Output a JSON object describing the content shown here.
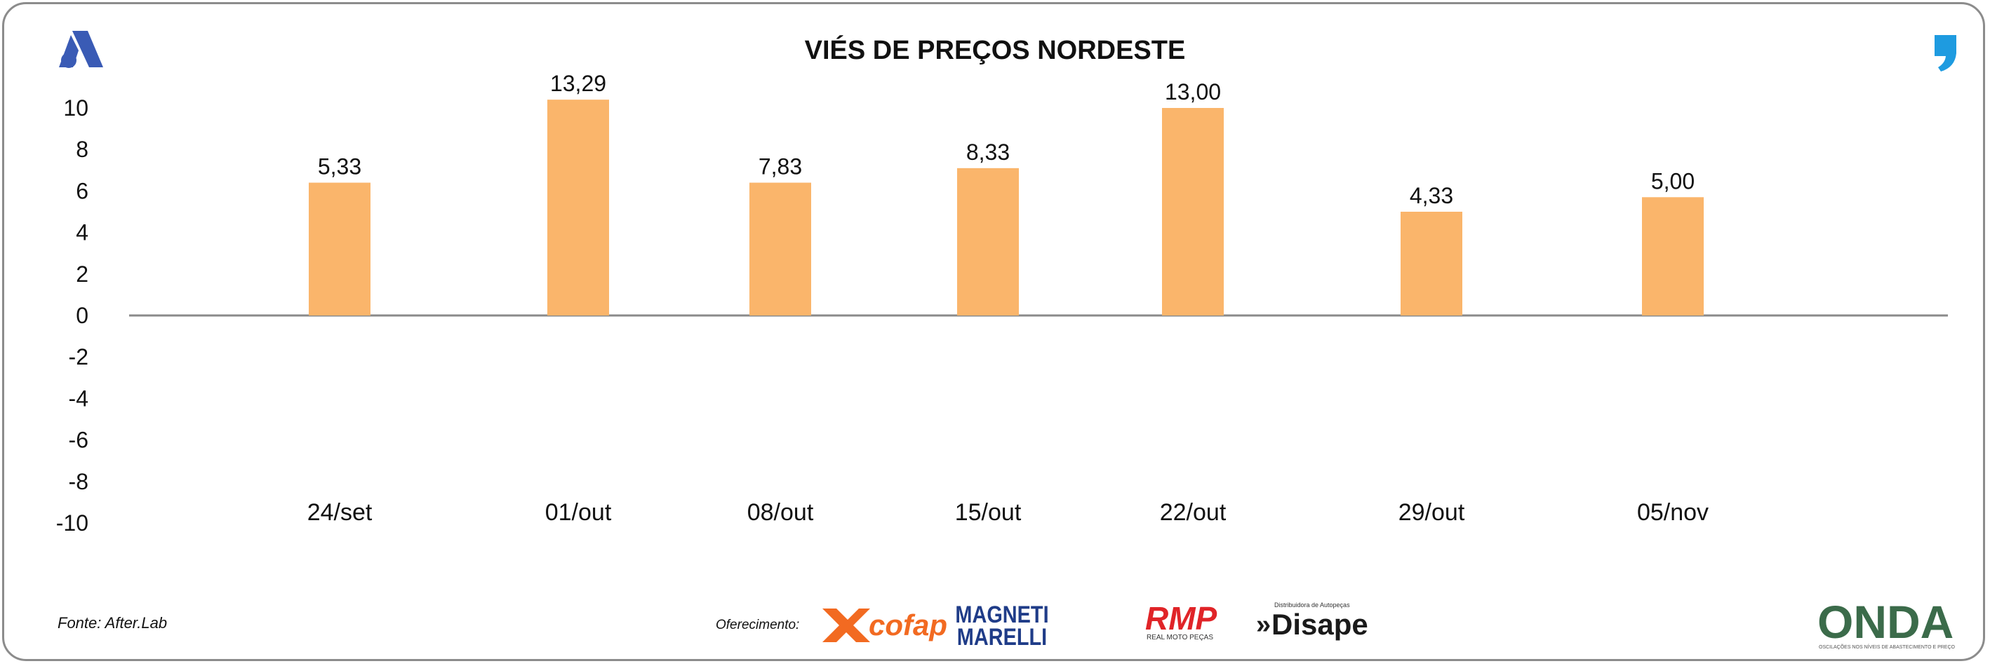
{
  "chart_data": {
    "type": "bar",
    "title": "VIÉS DE PREÇOS NORDESTE",
    "categories": [
      "24/set",
      "01/out",
      "08/out",
      "15/out",
      "22/out",
      "29/out",
      "05/nov"
    ],
    "values": [
      5.33,
      13.29,
      7.83,
      8.33,
      13.0,
      4.33,
      5.0
    ],
    "data_labels": [
      "5,33",
      "13,29",
      "7,83",
      "8,33",
      "13,00",
      "4,33",
      "5,00"
    ],
    "yticks": [
      "10",
      "8",
      "6",
      "4",
      "2",
      "0",
      "-2",
      "-4",
      "-6",
      "-8",
      "-10"
    ],
    "ylim": [
      -10,
      10
    ],
    "bar_color": "#FAB56B",
    "grid": false,
    "legend": "none"
  },
  "footer": {
    "source": "Fonte: After.Lab",
    "sponsor_label": "Oferecimento:",
    "sponsors": [
      "cofap",
      "MAGNETI MARELLI",
      "RMP",
      "Disape"
    ],
    "rmp_sub": "REAL MOTO PEÇAS",
    "disape_sub": "Distribuidora de Autopeças",
    "brand": "ONDA",
    "brand_sub": "OSCILAÇÕES NOS NÍVEIS DE ABASTECIMENTO E PREÇO"
  },
  "colors": {
    "brand_blue": "#3A5BB5",
    "quote_blue": "#1E9BE0",
    "cofap": "#F26A21",
    "rmp": "#E02428",
    "marelli": "#1F3C88"
  },
  "icons": {
    "top_left": "afterlab-logo-icon",
    "top_right": "quote-icon"
  }
}
